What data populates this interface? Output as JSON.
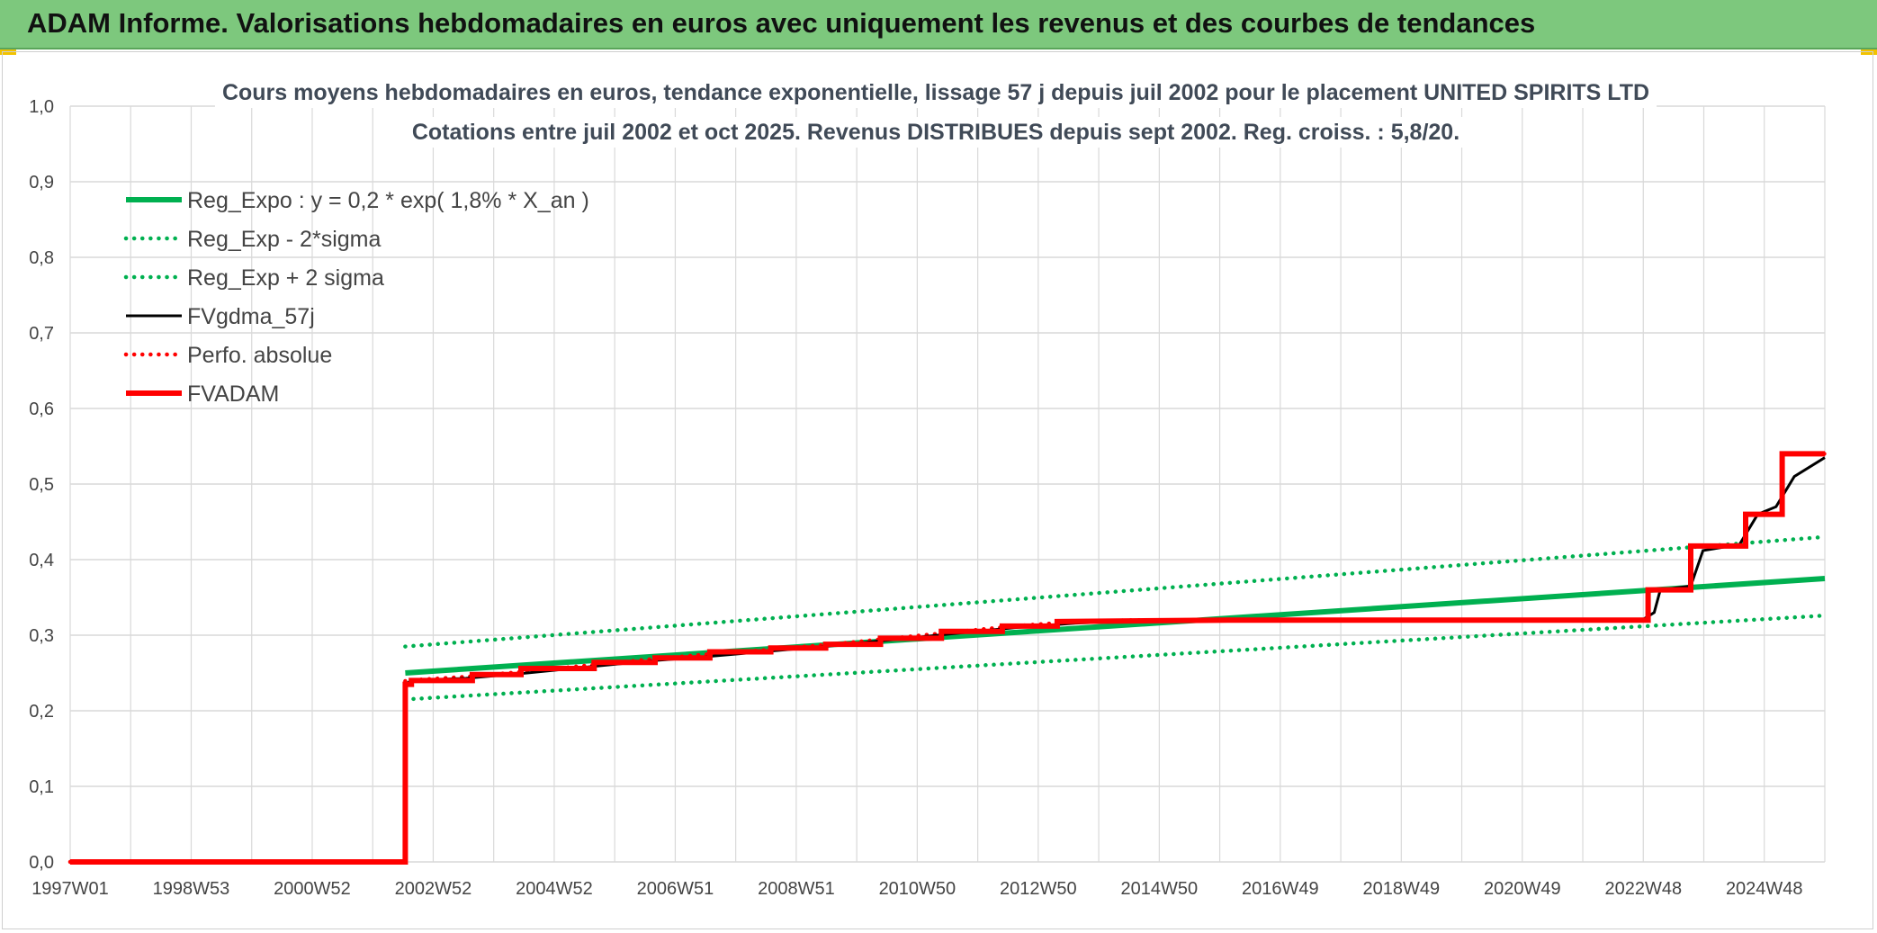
{
  "header": {
    "title": "ADAM Informe. Valorisations hebdomadaires en euros avec uniquement les revenus et des courbes de tendances"
  },
  "colors": {
    "banner": "#7dc87d",
    "reg": "#00b050",
    "black": "#000000",
    "red": "#ff0000",
    "grid": "#d9d9d9"
  },
  "chart_data": {
    "type": "line",
    "title": [
      "Cours moyens hebdomadaires en euros, tendance exponentielle, lissage 57 j depuis juil 2002 pour le placement UNITED SPIRITS LTD",
      "Cotations entre juil 2002 et oct 2025. Revenus DISTRIBUES depuis sept 2002. Reg. croiss. : 5,8/20."
    ],
    "xlabel": "",
    "ylabel": "",
    "x_range": [
      1997.0,
      2025.8
    ],
    "ylim": [
      0,
      1.0
    ],
    "yticks": [
      "0,0",
      "0,1",
      "0,2",
      "0,3",
      "0,4",
      "0,5",
      "0,6",
      "0,7",
      "0,8",
      "0,9",
      "1,0"
    ],
    "x_tick_labels": [
      "1997W01",
      "1998W53",
      "2000W52",
      "2002W52",
      "2004W52",
      "2006W51",
      "2008W51",
      "2010W50",
      "2012W50",
      "2014W50",
      "2016W49",
      "2018W49",
      "2020W49",
      "2022W48",
      "2024W48"
    ],
    "grid": true,
    "legend_position": "top-left",
    "series": [
      {
        "name": "Reg_Expo : y = 0,2 * exp( 1,8% *  X_an )",
        "style": "solid-thick",
        "color": "#00b050",
        "points": [
          [
            2002.5,
            0.25
          ],
          [
            2025.8,
            0.375
          ]
        ]
      },
      {
        "name": "Reg_Exp - 2*sigma",
        "style": "dotted",
        "color": "#00b050",
        "points": [
          [
            2002.5,
            0.215
          ],
          [
            2025.8,
            0.326
          ]
        ]
      },
      {
        "name": "Reg_Exp + 2 sigma",
        "style": "dotted",
        "color": "#00b050",
        "points": [
          [
            2002.5,
            0.285
          ],
          [
            2025.8,
            0.43
          ]
        ]
      },
      {
        "name": "FVgdma_57j",
        "style": "solid",
        "color": "#000000",
        "points": [
          [
            1997.0,
            0.0
          ],
          [
            2002.5,
            0.0
          ],
          [
            2002.5,
            0.235
          ],
          [
            2002.6,
            0.24
          ],
          [
            2003.5,
            0.243
          ],
          [
            2004.5,
            0.25
          ],
          [
            2005.5,
            0.258
          ],
          [
            2006.5,
            0.266
          ],
          [
            2007.5,
            0.272
          ],
          [
            2008.5,
            0.279
          ],
          [
            2009.5,
            0.286
          ],
          [
            2010.5,
            0.294
          ],
          [
            2011.5,
            0.302
          ],
          [
            2012.5,
            0.31
          ],
          [
            2013.5,
            0.316
          ],
          [
            2014.5,
            0.319
          ],
          [
            2016.0,
            0.32
          ],
          [
            2022.8,
            0.32
          ],
          [
            2023.0,
            0.33
          ],
          [
            2023.1,
            0.36
          ],
          [
            2023.6,
            0.365
          ],
          [
            2023.8,
            0.412
          ],
          [
            2024.4,
            0.42
          ],
          [
            2024.7,
            0.46
          ],
          [
            2025.0,
            0.47
          ],
          [
            2025.3,
            0.51
          ],
          [
            2025.8,
            0.535
          ]
        ]
      },
      {
        "name": "Perfo. absolue",
        "style": "dotted",
        "color": "#ff0000",
        "points": [
          [
            1997.0,
            0.0
          ],
          [
            2002.5,
            0.0
          ],
          [
            2002.5,
            0.24
          ],
          [
            2003.5,
            0.245
          ],
          [
            2004.5,
            0.252
          ],
          [
            2005.5,
            0.26
          ],
          [
            2006.5,
            0.268
          ],
          [
            2007.5,
            0.275
          ],
          [
            2008.5,
            0.281
          ],
          [
            2009.5,
            0.288
          ],
          [
            2010.5,
            0.296
          ],
          [
            2011.5,
            0.304
          ],
          [
            2012.5,
            0.312
          ],
          [
            2013.5,
            0.318
          ],
          [
            2014.5,
            0.32
          ],
          [
            2022.9,
            0.32
          ],
          [
            2022.9,
            0.36
          ],
          [
            2023.6,
            0.36
          ],
          [
            2023.6,
            0.418
          ],
          [
            2024.5,
            0.418
          ],
          [
            2024.5,
            0.46
          ],
          [
            2025.1,
            0.46
          ],
          [
            2025.1,
            0.54
          ],
          [
            2025.8,
            0.54
          ]
        ]
      },
      {
        "name": "FVADAM",
        "style": "solid-thick",
        "color": "#ff0000",
        "points": [
          [
            1997.0,
            0.0
          ],
          [
            2002.5,
            0.0
          ],
          [
            2002.5,
            0.235
          ],
          [
            2002.6,
            0.235
          ],
          [
            2002.6,
            0.24
          ],
          [
            2003.6,
            0.24
          ],
          [
            2003.6,
            0.248
          ],
          [
            2004.4,
            0.248
          ],
          [
            2004.4,
            0.256
          ],
          [
            2005.6,
            0.256
          ],
          [
            2005.6,
            0.264
          ],
          [
            2006.6,
            0.264
          ],
          [
            2006.6,
            0.27
          ],
          [
            2007.5,
            0.27
          ],
          [
            2007.5,
            0.278
          ],
          [
            2008.5,
            0.278
          ],
          [
            2008.5,
            0.283
          ],
          [
            2009.4,
            0.283
          ],
          [
            2009.4,
            0.288
          ],
          [
            2010.3,
            0.288
          ],
          [
            2010.3,
            0.296
          ],
          [
            2011.3,
            0.296
          ],
          [
            2011.3,
            0.305
          ],
          [
            2012.3,
            0.305
          ],
          [
            2012.3,
            0.312
          ],
          [
            2013.2,
            0.312
          ],
          [
            2013.2,
            0.318
          ],
          [
            2016.0,
            0.32
          ],
          [
            2022.9,
            0.32
          ],
          [
            2022.9,
            0.36
          ],
          [
            2023.6,
            0.36
          ],
          [
            2023.6,
            0.418
          ],
          [
            2024.5,
            0.418
          ],
          [
            2024.5,
            0.46
          ],
          [
            2025.1,
            0.46
          ],
          [
            2025.1,
            0.54
          ],
          [
            2025.8,
            0.54
          ]
        ]
      }
    ]
  }
}
